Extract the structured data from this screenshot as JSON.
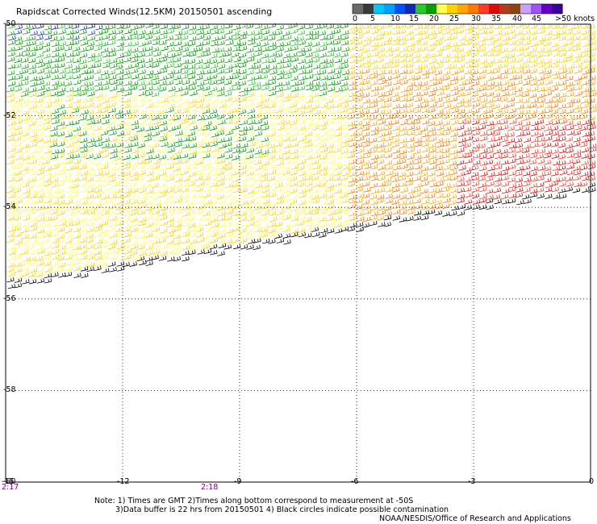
{
  "title": "Rapidscat Corrected Winds(12.5KM) 20150501 ascending",
  "legend": {
    "colors": [
      "#6a6a6a",
      "#3a3a3a",
      "#00c8ff",
      "#00a0ff",
      "#0050ff",
      "#1428b4",
      "#28c828",
      "#00a000",
      "#ffff50",
      "#ffd200",
      "#ffa500",
      "#ff7800",
      "#ff3c28",
      "#dc0a0a",
      "#b43c1e",
      "#8b4513",
      "#c8a0ff",
      "#a050ff",
      "#6400c8",
      "#3c00a0"
    ],
    "labels": [
      "0",
      "5",
      "10",
      "15",
      "20",
      "25",
      "30",
      "35",
      "40",
      "45",
      ">50 knots"
    ]
  },
  "axes": {
    "x_ticks": [
      "-15",
      "-12",
      "-9",
      "-6",
      "-3",
      "0"
    ],
    "y_ticks": [
      "-50",
      "-52",
      "-54",
      "-56",
      "-58",
      "-60"
    ]
  },
  "times": [
    "2:17",
    "2:18"
  ],
  "notes": {
    "line1": "Note: 1) Times are GMT 2)Times along bottom correspond to measurement at -50S",
    "line2": "3)Data buffer is 22 hrs from 20150501 4) Black circles indicate possible contamination",
    "line3": "NOAA/NESDIS/Office of Research and Applications"
  }
}
